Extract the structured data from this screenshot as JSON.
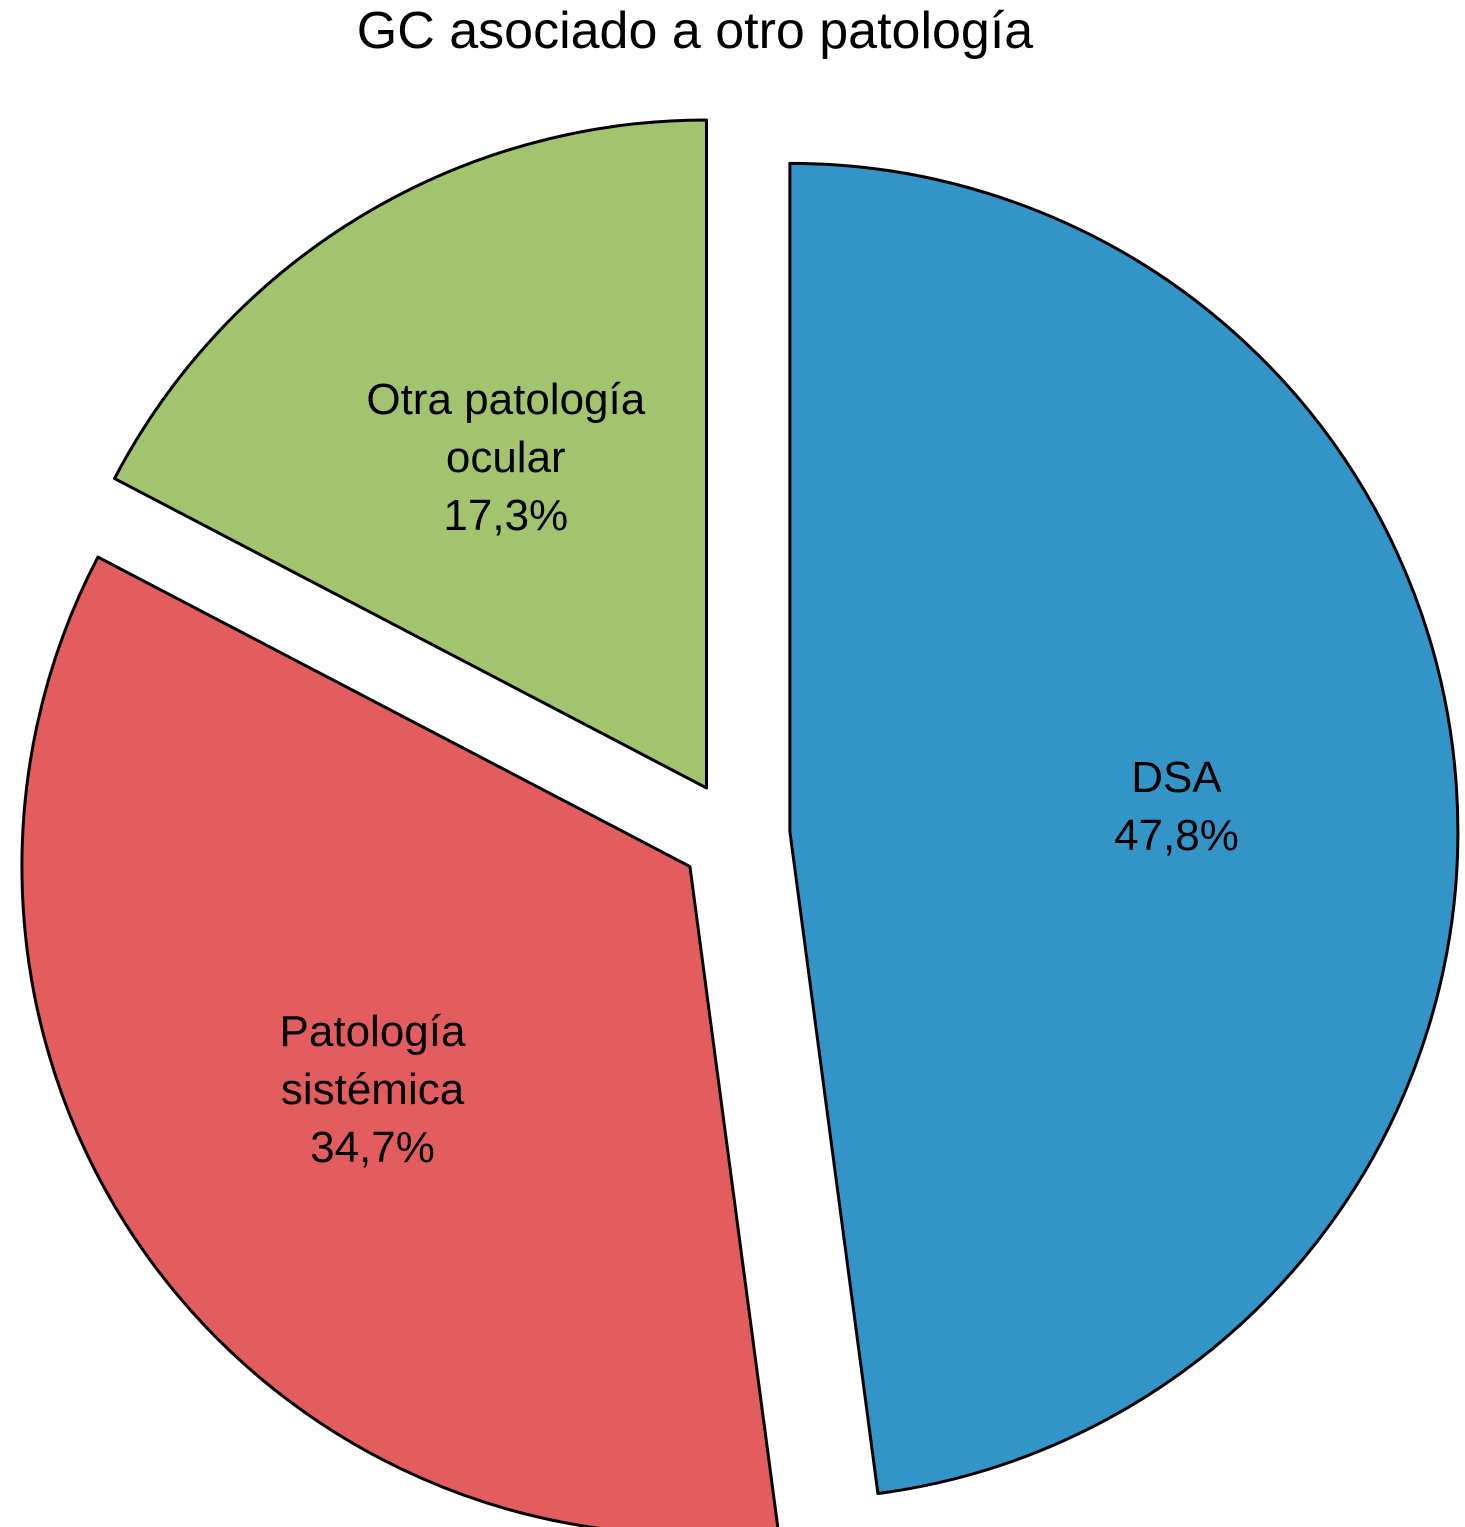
{
  "chart_data": {
    "type": "pie",
    "title": "GC asociado a otro patología",
    "slices": [
      {
        "label_lines": [
          "DSA"
        ],
        "value": 47.8,
        "value_label": "47,8%",
        "color": "#3395c7",
        "exploded": true
      },
      {
        "label_lines": [
          "Patología",
          "sistémica"
        ],
        "value": 34.7,
        "value_label": "34,7%",
        "color": "#e35d5f",
        "exploded": true
      },
      {
        "label_lines": [
          "Otra patología",
          "ocular"
        ],
        "value": 17.3,
        "value_label": "17,3%",
        "color": "#a2c46f",
        "exploded": true
      }
    ],
    "start_angle": "12 o'clock",
    "direction": "clockwise",
    "legend": "none"
  }
}
